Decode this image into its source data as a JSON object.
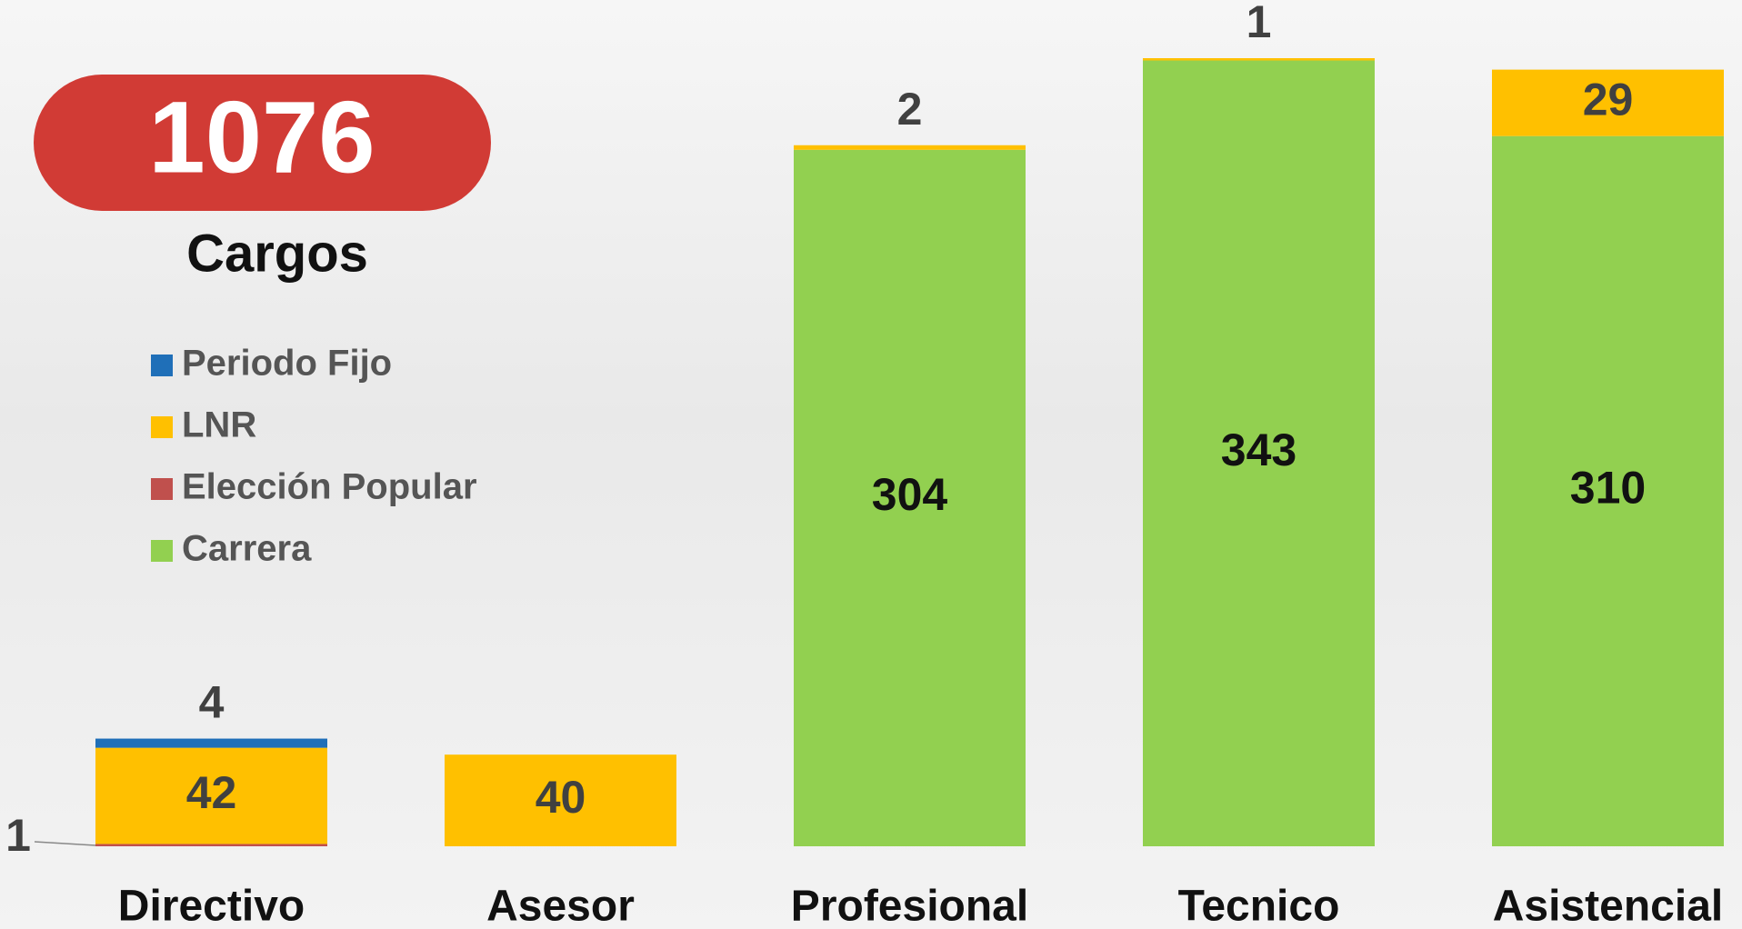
{
  "chart_data": {
    "type": "stacked_bar",
    "total": "1076",
    "total_label": "Cargos",
    "categories": [
      "Directivo",
      "Asesor",
      "Profesional",
      "Tecnico",
      "Asistencial"
    ],
    "series": [
      {
        "name": "Periodo Fijo",
        "color": "#1f6fb8",
        "values": [
          4,
          null,
          null,
          null,
          null
        ]
      },
      {
        "name": "LNR",
        "color": "#ffc000",
        "values": [
          42,
          40,
          2,
          1,
          29
        ]
      },
      {
        "name": "Elección Popular",
        "color": "#c0504d",
        "values": [
          1,
          null,
          null,
          null,
          null
        ]
      },
      {
        "name": "Carrera",
        "color": "#92d050",
        "values": [
          null,
          null,
          304,
          343,
          310
        ]
      }
    ],
    "stack_order": [
      "Elección Popular",
      "Carrera",
      "LNR",
      "Periodo Fijo"
    ]
  }
}
